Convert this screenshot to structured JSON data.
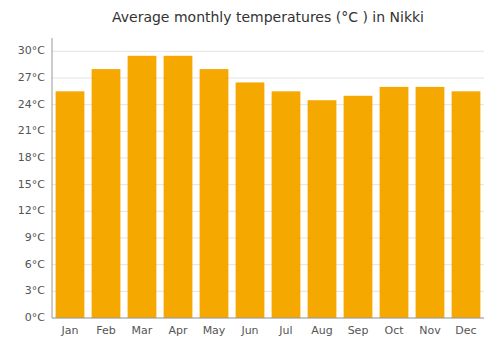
{
  "chart_data": {
    "type": "bar",
    "title": "Average monthly temperatures (°C ) in Nikki",
    "categories": [
      "Jan",
      "Feb",
      "Mar",
      "Apr",
      "May",
      "Jun",
      "Jul",
      "Aug",
      "Sep",
      "Oct",
      "Nov",
      "Dec"
    ],
    "values": [
      25.5,
      28.0,
      29.5,
      29.5,
      28.0,
      26.5,
      25.5,
      24.5,
      25.0,
      26.0,
      26.0,
      25.5
    ],
    "color": "#F5A800",
    "ylim": [
      0,
      31.5
    ],
    "yticks": [
      {
        "value": 0,
        "label": "0°C"
      },
      {
        "value": 3,
        "label": "3°C"
      },
      {
        "value": 6,
        "label": "6°C"
      },
      {
        "value": 9,
        "label": "9°C"
      },
      {
        "value": 12,
        "label": "12°C"
      },
      {
        "value": 15,
        "label": "15°C"
      },
      {
        "value": 18,
        "label": "18°C"
      },
      {
        "value": 21,
        "label": "21°C"
      },
      {
        "value": 24,
        "label": "24°C"
      },
      {
        "value": 27,
        "label": "27°C"
      },
      {
        "value": 30,
        "label": "30°C"
      }
    ],
    "grid": true
  }
}
